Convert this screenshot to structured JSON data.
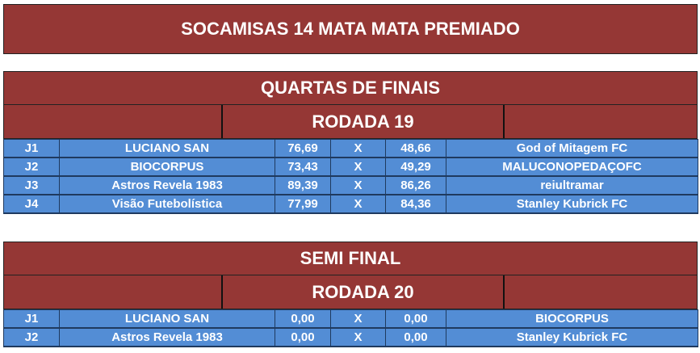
{
  "title": "SOCAMISAS 14 MATA MATA PREMIADO",
  "colors": {
    "header": "#953735",
    "rows": "#538dd5",
    "text": "#ffffff"
  },
  "quartas": {
    "title": "QUARTAS DE FINAIS",
    "rodada": "RODADA 19",
    "matches": [
      {
        "id": "J1",
        "home": "LUCIANO SAN",
        "home_score": "76,69",
        "sep": "X",
        "away_score": "48,66",
        "away": "God of Mitagem FC"
      },
      {
        "id": "J2",
        "home": "BIOCORPUS",
        "home_score": "73,43",
        "sep": "X",
        "away_score": "49,29",
        "away": "MALUCONOPEDAÇOFC"
      },
      {
        "id": "J3",
        "home": "Astros Revela 1983",
        "home_score": "89,39",
        "sep": "X",
        "away_score": "86,26",
        "away": "reiultramar"
      },
      {
        "id": "J4",
        "home": "Visão Futebolística",
        "home_score": "77,99",
        "sep": "X",
        "away_score": "84,36",
        "away": "Stanley Kubrick FC"
      }
    ]
  },
  "semi": {
    "title": "SEMI FINAL",
    "rodada": "RODADA 20",
    "matches": [
      {
        "id": "J1",
        "home": "LUCIANO SAN",
        "home_score": "0,00",
        "sep": "X",
        "away_score": "0,00",
        "away": "BIOCORPUS"
      },
      {
        "id": "J2",
        "home": "Astros Revela 1983",
        "home_score": "0,00",
        "sep": "X",
        "away_score": "0,00",
        "away": "Stanley Kubrick FC"
      }
    ]
  }
}
